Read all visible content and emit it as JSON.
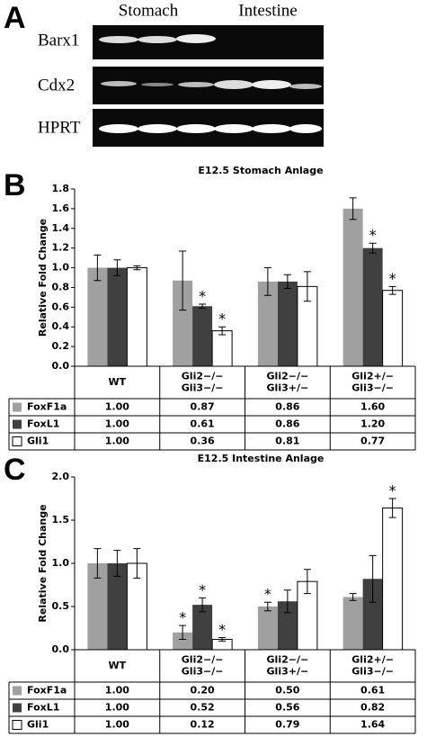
{
  "panels": [
    "A",
    "B",
    "C"
  ],
  "gel": {
    "columns": [
      "Stomach",
      "Intestine"
    ],
    "rows": [
      "Barx1",
      "Cdx2",
      "HPRT"
    ]
  },
  "chart_data": [
    {
      "type": "bar",
      "title": "E12.5 Stomach Anlage",
      "y_label": "Relative Fold Change",
      "categories": [
        [
          "WT"
        ],
        [
          "Gli2−/−",
          "Gli3−/−"
        ],
        [
          "Gli2−/−",
          "Gli3+/−"
        ],
        [
          "Gli2+/−",
          "Gli3−/−"
        ]
      ],
      "significance_mark": "*",
      "series": [
        {
          "name": "FoxF1a",
          "color": "#a0a0a0",
          "values": [
            1.0,
            0.87,
            0.86,
            1.6
          ],
          "value_labels": [
            "1.00",
            "0.87",
            "0.86",
            "1.60"
          ],
          "errors": [
            0.13,
            0.3,
            0.14,
            0.11
          ],
          "significant": [
            false,
            false,
            false,
            false
          ]
        },
        {
          "name": "FoxL1",
          "color": "#404040",
          "values": [
            1.0,
            0.61,
            0.86,
            1.2
          ],
          "value_labels": [
            "1.00",
            "0.61",
            "0.86",
            "1.20"
          ],
          "errors": [
            0.08,
            0.02,
            0.07,
            0.05
          ],
          "significant": [
            false,
            true,
            false,
            true
          ]
        },
        {
          "name": "Gli1",
          "color": "#ffffff",
          "values": [
            1.0,
            0.36,
            0.81,
            0.77
          ],
          "value_labels": [
            "1.00",
            "0.36",
            "0.81",
            "0.77"
          ],
          "errors": [
            0.02,
            0.04,
            0.15,
            0.04
          ],
          "significant": [
            false,
            true,
            false,
            true
          ]
        }
      ],
      "ylim": [
        0,
        1.8
      ],
      "yticks": [
        {
          "value": 0,
          "label": "0.0"
        },
        0.2,
        0.4,
        0.6,
        0.8,
        {
          "value": 1,
          "label": "1.0"
        },
        1.2,
        1.4,
        1.6,
        1.8
      ]
    },
    {
      "type": "bar",
      "title": "E12.5 Intestine Anlage",
      "y_label": "Relative Fold Change",
      "categories": [
        [
          "WT"
        ],
        [
          "Gli2−/−",
          "Gli3−/−"
        ],
        [
          "Gli2−/−",
          "Gli3+/−"
        ],
        [
          "Gli2+/−",
          "Gli3−/−"
        ]
      ],
      "significance_mark": "*",
      "series": [
        {
          "name": "FoxF1a",
          "color": "#a0a0a0",
          "values": [
            1.0,
            0.2,
            0.5,
            0.61
          ],
          "value_labels": [
            "1.00",
            "0.20",
            "0.50",
            "0.61"
          ],
          "errors": [
            0.17,
            0.08,
            0.05,
            0.04
          ],
          "significant": [
            false,
            true,
            true,
            false
          ]
        },
        {
          "name": "FoxL1",
          "color": "#404040",
          "values": [
            1.0,
            0.52,
            0.56,
            0.82
          ],
          "value_labels": [
            "1.00",
            "0.52",
            "0.56",
            "0.82"
          ],
          "errors": [
            0.15,
            0.08,
            0.13,
            0.27
          ],
          "significant": [
            false,
            true,
            false,
            false
          ]
        },
        {
          "name": "Gli1",
          "color": "#ffffff",
          "values": [
            1.0,
            0.12,
            0.79,
            1.64
          ],
          "value_labels": [
            "1.00",
            "0.12",
            "0.79",
            "1.64"
          ],
          "errors": [
            0.17,
            0.02,
            0.14,
            0.11
          ],
          "significant": [
            false,
            true,
            false,
            true
          ]
        }
      ],
      "ylim": [
        0,
        2
      ],
      "yticks": [
        {
          "value": 0,
          "label": "0.0"
        },
        0.5,
        {
          "value": 1,
          "label": "1.0"
        },
        1.5,
        {
          "value": 2,
          "label": "2.0"
        }
      ]
    }
  ]
}
